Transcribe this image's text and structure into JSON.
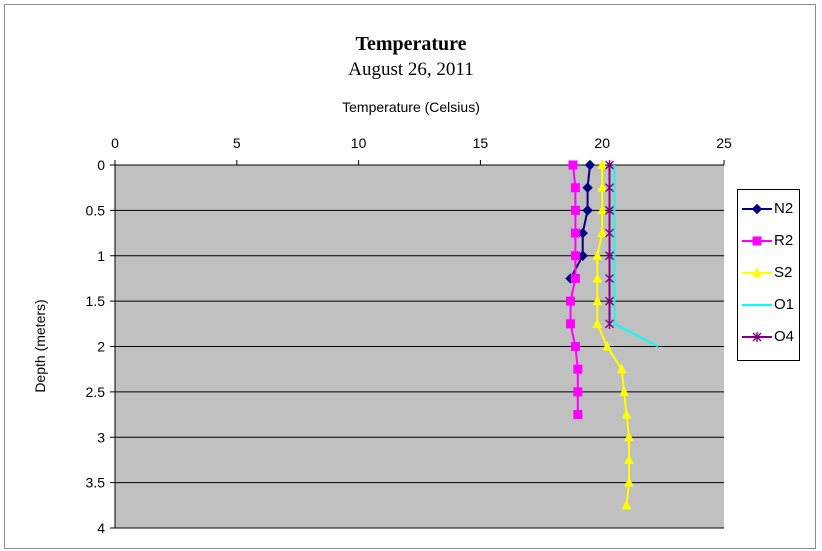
{
  "chart_data": {
    "type": "line",
    "title": "Temperature",
    "subtitle": "August 26, 2011",
    "xlabel": "Temperature (Celsius)",
    "ylabel": "Depth (meters)",
    "xlim": [
      0,
      25
    ],
    "ylim": [
      0,
      4
    ],
    "y_inverted": true,
    "x_axis_position": "top",
    "x_ticks": [
      "0",
      "5",
      "10",
      "15",
      "20",
      "25"
    ],
    "y_ticks": [
      "0",
      "0.5",
      "1",
      "1.5",
      "2",
      "2.5",
      "3",
      "3.5",
      "4"
    ],
    "grid": "horizontal",
    "plot_background": "#c0c0c0",
    "legend_position": "right",
    "series": [
      {
        "name": "N2",
        "color": "#000080",
        "marker": "diamond",
        "points": [
          [
            19.5,
            0
          ],
          [
            19.4,
            0.25
          ],
          [
            19.4,
            0.5
          ],
          [
            19.2,
            0.75
          ],
          [
            19.2,
            1
          ],
          [
            18.7,
            1.25
          ]
        ]
      },
      {
        "name": "R2",
        "color": "#ff00ff",
        "marker": "square",
        "points": [
          [
            18.8,
            0
          ],
          [
            18.9,
            0.25
          ],
          [
            18.9,
            0.5
          ],
          [
            18.9,
            0.75
          ],
          [
            18.9,
            1
          ],
          [
            18.9,
            1.25
          ],
          [
            18.7,
            1.5
          ],
          [
            18.7,
            1.75
          ],
          [
            18.9,
            2
          ],
          [
            19.0,
            2.25
          ],
          [
            19.0,
            2.5
          ],
          [
            19.0,
            2.75
          ]
        ]
      },
      {
        "name": "S2",
        "color": "#ffff00",
        "marker": "triangle",
        "points": [
          [
            20.0,
            0
          ],
          [
            20.0,
            0.25
          ],
          [
            20.0,
            0.5
          ],
          [
            20.0,
            0.75
          ],
          [
            19.8,
            1
          ],
          [
            19.8,
            1.25
          ],
          [
            19.8,
            1.5
          ],
          [
            19.8,
            1.75
          ],
          [
            20.2,
            2
          ],
          [
            20.8,
            2.25
          ],
          [
            20.9,
            2.5
          ],
          [
            21.0,
            2.75
          ],
          [
            21.1,
            3
          ],
          [
            21.1,
            3.25
          ],
          [
            21.1,
            3.5
          ],
          [
            21.0,
            3.75
          ]
        ]
      },
      {
        "name": "O1",
        "color": "#00ffff",
        "marker": "none",
        "points": [
          [
            20.5,
            0
          ],
          [
            20.5,
            0.25
          ],
          [
            20.5,
            0.5
          ],
          [
            20.5,
            0.75
          ],
          [
            20.5,
            1
          ],
          [
            20.5,
            1.25
          ],
          [
            20.5,
            1.5
          ],
          [
            20.5,
            1.75
          ],
          [
            22.3,
            2
          ]
        ]
      },
      {
        "name": "O4",
        "color": "#800080",
        "marker": "star",
        "points": [
          [
            20.3,
            0
          ],
          [
            20.3,
            0.25
          ],
          [
            20.3,
            0.5
          ],
          [
            20.3,
            0.75
          ],
          [
            20.3,
            1
          ],
          [
            20.3,
            1.25
          ],
          [
            20.3,
            1.5
          ],
          [
            20.3,
            1.75
          ]
        ]
      }
    ]
  }
}
